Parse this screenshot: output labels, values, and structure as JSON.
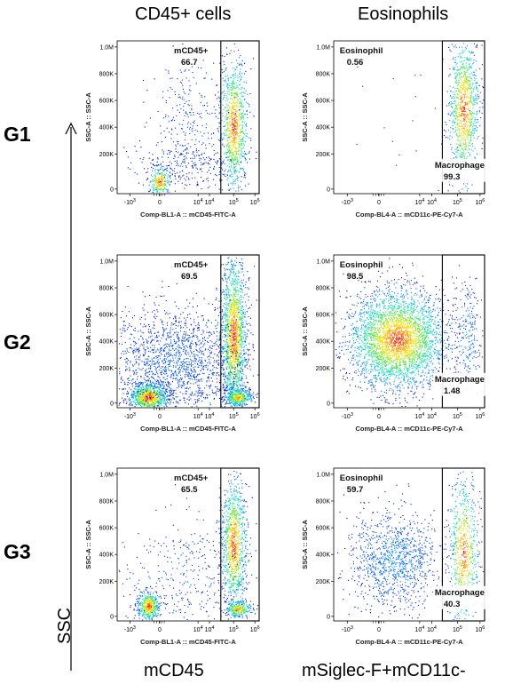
{
  "headers": {
    "col1": "CD45+ cells",
    "col2": "Eosinophils"
  },
  "rows": [
    {
      "label": "G1"
    },
    {
      "label": "G2"
    },
    {
      "label": "G3"
    }
  ],
  "side_axis_label": "SSC",
  "bottom_labels": {
    "col1": "mCD45",
    "col2": "mSiglec-F+mCD11c-"
  },
  "y_ticks": [
    "1.0M",
    "800K",
    "600K",
    "400K",
    "200K",
    "0"
  ],
  "x_ticks": [
    "-10",
    "0",
    "10",
    "10",
    "10",
    "10"
  ],
  "x_tick_exps": [
    "3",
    "",
    "4",
    "4",
    "5",
    "6"
  ],
  "chart_data": [
    {
      "type": "scatter",
      "row": "G1",
      "column": "CD45+ cells",
      "xlabel": "Comp-BL1-A :: mCD45-FITC-A",
      "ylabel": "SSC-A :: SSC-A",
      "gates": [
        {
          "name": "mCD45+",
          "value": "66.7"
        }
      ]
    },
    {
      "type": "scatter",
      "row": "G1",
      "column": "Eosinophils",
      "xlabel": "Comp-BL4-A :: mCD11c-PE-Cy7-A",
      "ylabel": "SSC-A :: SSC-A",
      "gates": [
        {
          "name": "Eosinophil",
          "value": "0.56"
        },
        {
          "name": "Macrophage",
          "value": "99.3"
        }
      ]
    },
    {
      "type": "scatter",
      "row": "G2",
      "column": "CD45+ cells",
      "xlabel": "Comp-BL1-A :: mCD45-FITC-A",
      "ylabel": "SSC-A :: SSC-A",
      "gates": [
        {
          "name": "mCD45+",
          "value": "69.5"
        }
      ]
    },
    {
      "type": "scatter",
      "row": "G2",
      "column": "Eosinophils",
      "xlabel": "Comp-BL4-A :: mCD11c-PE-Cy7-A",
      "ylabel": "SSC-A :: SSC-A",
      "gates": [
        {
          "name": "Eosinophil",
          "value": "98.5"
        },
        {
          "name": "Macrophage",
          "value": "1.48"
        }
      ]
    },
    {
      "type": "scatter",
      "row": "G3",
      "column": "CD45+ cells",
      "xlabel": "Comp-BL1-A :: mCD45-FITC-A",
      "ylabel": "SSC-A :: SSC-A",
      "gates": [
        {
          "name": "mCD45+",
          "value": "65.5"
        }
      ]
    },
    {
      "type": "scatter",
      "row": "G3",
      "column": "Eosinophils",
      "xlabel": "Comp-BL4-A :: mCD11c-PE-Cy7-A",
      "ylabel": "SSC-A :: SSC-A",
      "gates": [
        {
          "name": "Eosinophil",
          "value": "59.7"
        },
        {
          "name": "Macrophage",
          "value": "40.3"
        }
      ]
    }
  ]
}
